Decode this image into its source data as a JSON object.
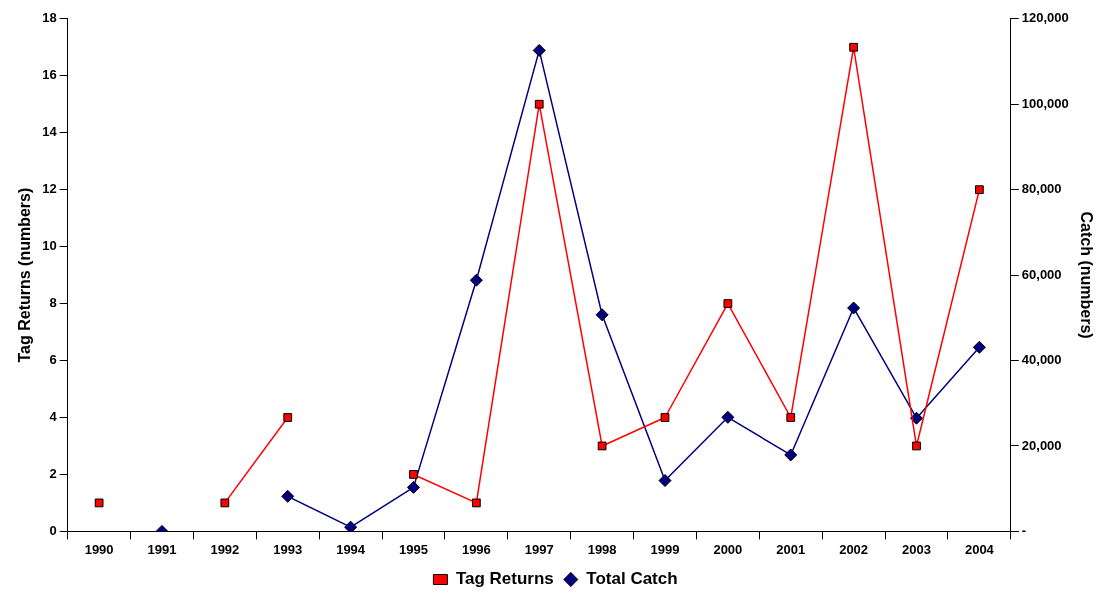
{
  "chart_data": {
    "type": "line",
    "ylabel": "Tag Returns (numbers)",
    "y2label": "Catch (numbers)",
    "categories": [
      "1990",
      "1991",
      "1992",
      "1993",
      "1994",
      "1995",
      "1996",
      "1997",
      "1998",
      "1999",
      "2000",
      "2001",
      "2002",
      "2003",
      "2004"
    ],
    "series": [
      {
        "name": "Tag Returns",
        "color": "#ff0000",
        "marker": "square",
        "values": [
          1,
          null,
          1,
          4,
          null,
          2,
          1,
          15,
          3,
          4,
          8,
          4,
          17,
          3,
          12
        ]
      },
      {
        "name": "Total Catch",
        "color": "#000080",
        "marker": "diamond",
        "axis": "y2",
        "values": [
          null,
          0,
          null,
          8200,
          1000,
          10300,
          58800,
          112600,
          50700,
          11900,
          26700,
          17900,
          52300,
          26500,
          43100
        ]
      }
    ],
    "ylim": [
      0,
      18
    ],
    "yticks": [
      0,
      2,
      4,
      6,
      8,
      10,
      12,
      14,
      16,
      18
    ],
    "y2lim": [
      0,
      120000
    ],
    "y2ticks": [
      {
        "value": 0,
        "label": "-"
      },
      {
        "value": 20000,
        "label": "20,000"
      },
      {
        "value": 40000,
        "label": "40,000"
      },
      {
        "value": 60000,
        "label": "60,000"
      },
      {
        "value": 80000,
        "label": "80,000"
      },
      {
        "value": 100000,
        "label": "100,000"
      },
      {
        "value": 120000,
        "label": "120,000"
      }
    ],
    "grid": false,
    "legend": "bottom",
    "line_style": "solid"
  }
}
